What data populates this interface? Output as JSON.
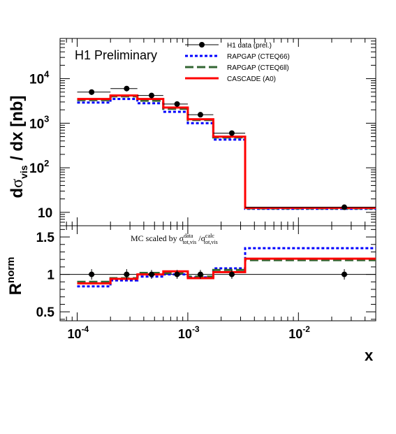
{
  "chart_data": [
    {
      "type": "line",
      "panel": "top",
      "title": "H1 Preliminary",
      "ylabel": "dσ_vis / dx [nb]",
      "xlabel": "",
      "log_x": true,
      "log_y": true,
      "xlim": [
        7e-05,
        0.05
      ],
      "ylim": [
        5,
        80000
      ],
      "grid": false,
      "legend_position": "top-right",
      "y_tick_labels": [
        "10^4",
        "10^3",
        "10^2",
        "10"
      ],
      "bin_edges": [
        0.0001,
        0.0002,
        0.00035,
        0.0006,
        0.001,
        0.0017,
        0.0033,
        0.05
      ],
      "data_points": {
        "name": "H1 data (prel.)",
        "x": [
          0.000135,
          0.00028,
          0.00047,
          0.0008,
          0.0013,
          0.0025,
          0.026
        ],
        "y": [
          5000,
          6000,
          4200,
          2700,
          1550,
          600,
          13
        ],
        "x_lo": [
          0.0001,
          0.0002,
          0.00035,
          0.0006,
          0.001,
          0.0017,
          0.0033
        ],
        "x_hi": [
          0.0002,
          0.00035,
          0.0006,
          0.001,
          0.0017,
          0.0033,
          0.05
        ],
        "y_err": [
          700,
          800,
          600,
          350,
          200,
          80,
          1.5
        ]
      },
      "series": [
        {
          "name": "RAPGAP (CTEQ66)",
          "color": "#0000ff",
          "style": "dotted",
          "values": [
            2900,
            3500,
            2800,
            1800,
            1000,
            430,
            12
          ]
        },
        {
          "name": "RAPGAP (CTEQ6ll)",
          "color": "#336633",
          "style": "long-dash",
          "values": [
            3300,
            4000,
            3200,
            2100,
            1180,
            480,
            12.3
          ]
        },
        {
          "name": "CASCADE (A0)",
          "color": "#ff0000",
          "style": "solid",
          "values": [
            3500,
            4200,
            3500,
            2250,
            1230,
            500,
            12.6
          ]
        }
      ]
    },
    {
      "type": "line",
      "panel": "bottom",
      "ylabel": "R^norm",
      "xlabel": "x",
      "annotation": "MC scaled by σ^data_tot,vis / σ^calc_tot,vis",
      "log_x": true,
      "xlim": [
        7e-05,
        0.05
      ],
      "ylim": [
        0.38,
        1.65
      ],
      "y_ticks": [
        0.5,
        1,
        1.5
      ],
      "y_tick_labels": [
        "0.5",
        "1",
        "1.5"
      ],
      "x_tick_labels": [
        "10^-4",
        "10^-3",
        "10^-2"
      ],
      "reference_line": 1,
      "bin_edges": [
        0.0001,
        0.0002,
        0.00035,
        0.0006,
        0.001,
        0.0017,
        0.0033,
        0.05
      ],
      "data_points": {
        "name": "H1 data (prel.)",
        "x": [
          0.000135,
          0.00028,
          0.00047,
          0.0008,
          0.0013,
          0.0025,
          0.026
        ],
        "y": [
          1.0,
          1.0,
          1.0,
          1.0,
          1.0,
          1.0,
          1.0
        ],
        "y_err": [
          0.07,
          0.07,
          0.06,
          0.06,
          0.06,
          0.06,
          0.07
        ]
      },
      "series": [
        {
          "name": "RAPGAP (CTEQ66)",
          "color": "#0000ff",
          "style": "dotted",
          "values": [
            0.84,
            0.92,
            0.97,
            1.0,
            0.96,
            1.08,
            1.35
          ]
        },
        {
          "name": "RAPGAP (CTEQ6ll)",
          "color": "#336633",
          "style": "long-dash",
          "values": [
            0.9,
            0.95,
            1.02,
            1.02,
            0.97,
            1.06,
            1.19
          ]
        },
        {
          "name": "CASCADE (A0)",
          "color": "#ff0000",
          "style": "solid",
          "values": [
            0.88,
            0.94,
            1.0,
            1.04,
            0.95,
            1.03,
            1.21
          ]
        }
      ]
    }
  ]
}
